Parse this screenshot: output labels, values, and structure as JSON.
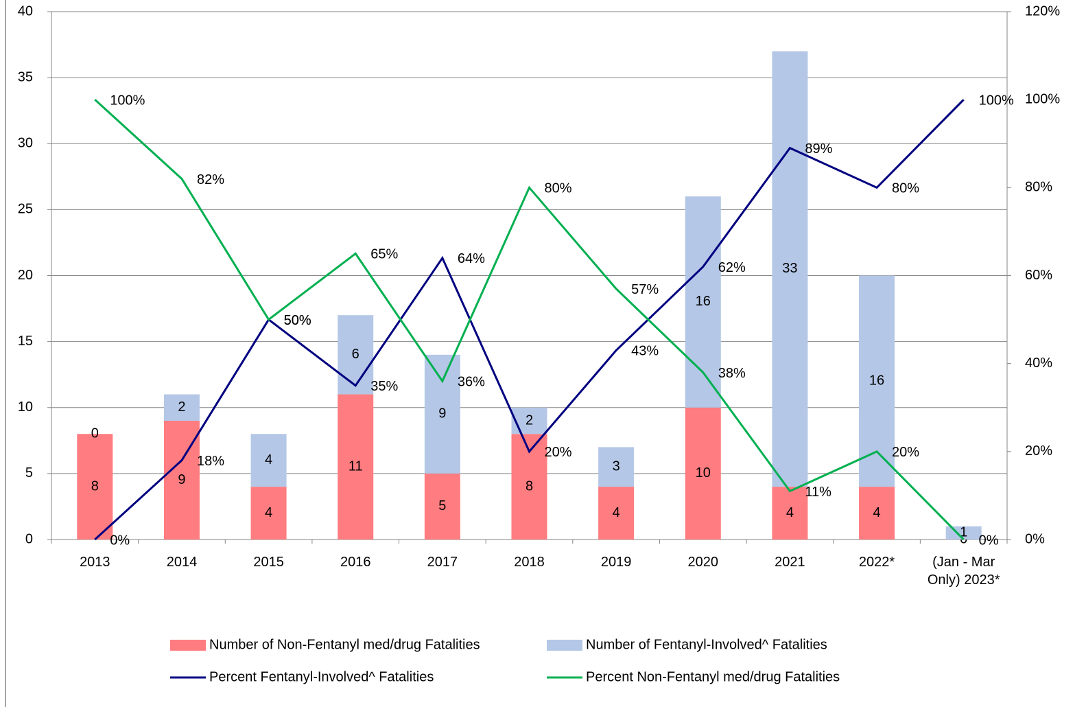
{
  "chart_data": {
    "type": "bar-line",
    "categories": [
      "2013",
      "2014",
      "2015",
      "2016",
      "2017",
      "2018",
      "2019",
      "2020",
      "2021",
      "2022*",
      "(Jan - Mar Only) 2023*"
    ],
    "series": [
      {
        "name": "Number of Non-Fentanyl med/drug Fatalities",
        "type": "bar",
        "color": "#ff7c80",
        "values": [
          8,
          9,
          4,
          11,
          5,
          8,
          4,
          10,
          4,
          4,
          0
        ]
      },
      {
        "name": "Number of Fentanyl-Involved^ Fatalities",
        "type": "bar",
        "color": "#b4c7e7",
        "values": [
          0,
          2,
          4,
          6,
          9,
          2,
          3,
          16,
          33,
          16,
          1
        ]
      },
      {
        "name": "Percent Fentanyl-Involved^ Fatalities",
        "type": "line",
        "axis": "y2",
        "color": "#000080",
        "values": [
          0,
          18,
          50,
          35,
          64,
          20,
          43,
          62,
          89,
          80,
          100
        ],
        "value_labels": [
          "0%",
          "18%",
          "50%",
          "35%",
          "64%",
          "20%",
          "43%",
          "62%",
          "89%",
          "80%",
          "100%"
        ]
      },
      {
        "name": "Percent Non-Fentanyl med/drug Fatalities",
        "type": "line",
        "axis": "y2",
        "color": "#00b050",
        "values": [
          100,
          82,
          50,
          65,
          36,
          80,
          57,
          38,
          11,
          20,
          0
        ],
        "value_labels": [
          "100%",
          "82%",
          "50%",
          "65%",
          "36%",
          "80%",
          "57%",
          "38%",
          "11%",
          "20%",
          "0%"
        ]
      }
    ],
    "stacked": true,
    "ylim": [
      0,
      40
    ],
    "yticks": [
      0,
      5,
      10,
      15,
      20,
      25,
      30,
      35,
      40
    ],
    "y2lim": [
      0,
      120
    ],
    "y2ticks": [
      {
        "value": 0,
        "label": "0%"
      },
      {
        "value": 20,
        "label": "20%"
      },
      {
        "value": 40,
        "label": "40%"
      },
      {
        "value": 60,
        "label": "60%"
      },
      {
        "value": 80,
        "label": "80%"
      },
      {
        "value": 100,
        "label": "100%"
      },
      {
        "value": 120,
        "label": "120%"
      }
    ],
    "grid": true,
    "legend": "bottom"
  }
}
